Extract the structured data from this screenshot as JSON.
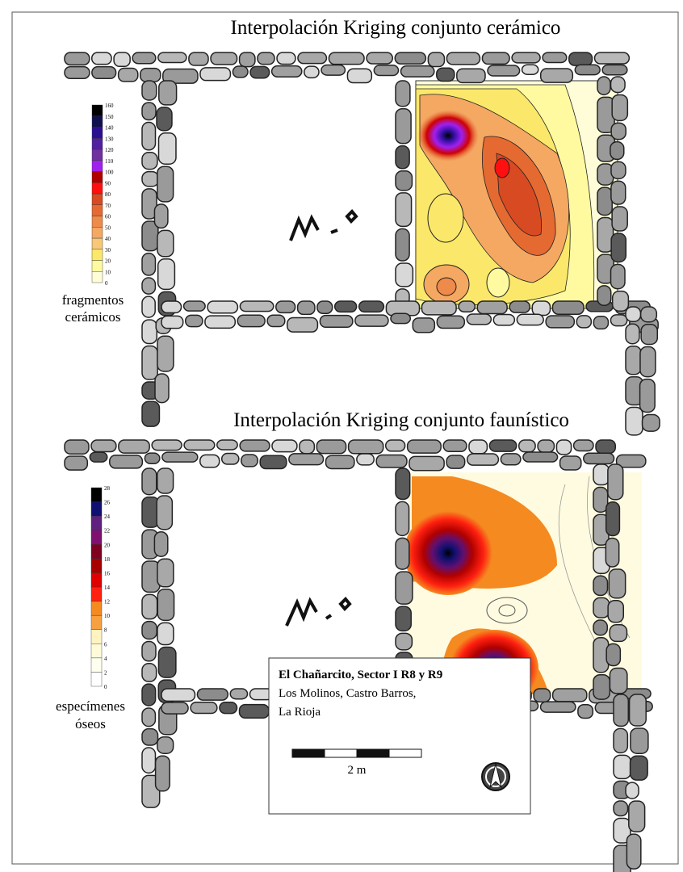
{
  "panels": [
    {
      "title": "Interpolación Kriging conjunto cerámico",
      "legend": {
        "ticks": [
          0,
          10,
          20,
          30,
          40,
          50,
          60,
          70,
          80,
          90,
          100,
          110,
          120,
          130,
          140,
          150,
          160
        ],
        "colors": [
          "#fffdd8",
          "#fffaa0",
          "#fbe86a",
          "#f8c878",
          "#f4a862",
          "#ee8a4a",
          "#e46a32",
          "#d84a22",
          "#ff1010",
          "#b00000",
          "#a020f0",
          "#7030a0",
          "#5020a0",
          "#2a1090",
          "#101050",
          "#000000"
        ],
        "label": [
          "fragmentos",
          "cerámicos"
        ]
      }
    },
    {
      "title": "Interpolación Kriging conjunto faunístico",
      "legend": {
        "ticks": [
          0,
          2,
          4,
          6,
          8,
          10,
          12,
          14,
          16,
          18,
          20,
          22,
          24,
          26,
          28
        ],
        "colors": [
          "#ffffff",
          "#fffff0",
          "#fffbd8",
          "#fff4c0",
          "#f7a040",
          "#f58a20",
          "#ff2010",
          "#e00000",
          "#a80000",
          "#800020",
          "#801070",
          "#602080",
          "#101070",
          "#000000"
        ],
        "label": [
          "especímenes",
          "óseos"
        ]
      }
    }
  ],
  "info": {
    "title": "El Chañarcito, Sector I R8 y R9",
    "lines": [
      "Los Molinos, Castro Barros,",
      "La Rioja"
    ],
    "scale": "2 m"
  }
}
